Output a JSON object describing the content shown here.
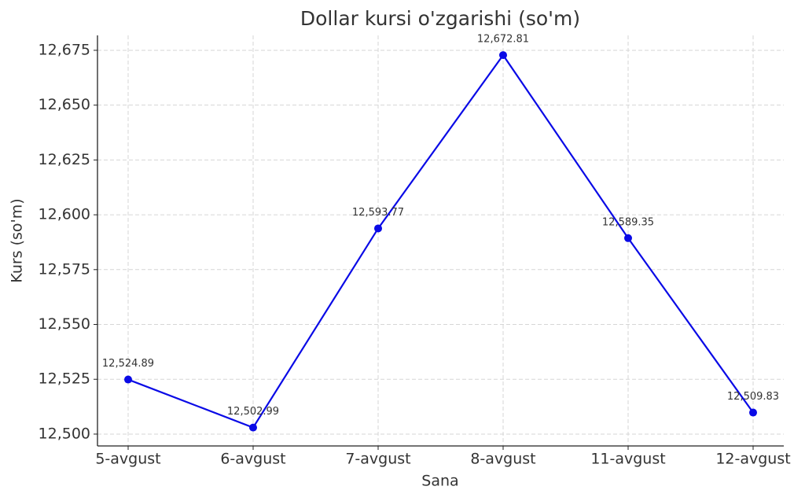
{
  "chart_data": {
    "type": "line",
    "title": "Dollar kursi o'zgarishi (so'm)",
    "x_label": "Sana",
    "y_label": "Kurs (so'm)",
    "categories": [
      "5-avgust",
      "6-avgust",
      "7-avgust",
      "8-avgust",
      "11-avgust",
      "12-avgust"
    ],
    "series": [
      {
        "name": "Kurs",
        "color": "#0a0ae6",
        "values": [
          12524.89,
          12502.99,
          12593.77,
          12672.81,
          12589.35,
          12509.83
        ],
        "value_labels": [
          "12,524.89",
          "12,502.99",
          "12,593.77",
          "12,672.81",
          "12,589.35",
          "12,509.83"
        ]
      }
    ],
    "ylim": [
      12494.6,
      12681.8
    ],
    "yticks": [
      {
        "value": 12500,
        "label": "12,500"
      },
      {
        "value": 12525,
        "label": "12,525"
      },
      {
        "value": 12550,
        "label": "12,550"
      },
      {
        "value": 12575,
        "label": "12,575"
      },
      {
        "value": 12600,
        "label": "12,600"
      },
      {
        "value": 12625,
        "label": "12,625"
      },
      {
        "value": 12650,
        "label": "12,650"
      },
      {
        "value": 12675,
        "label": "12,675"
      }
    ],
    "grid": true
  }
}
